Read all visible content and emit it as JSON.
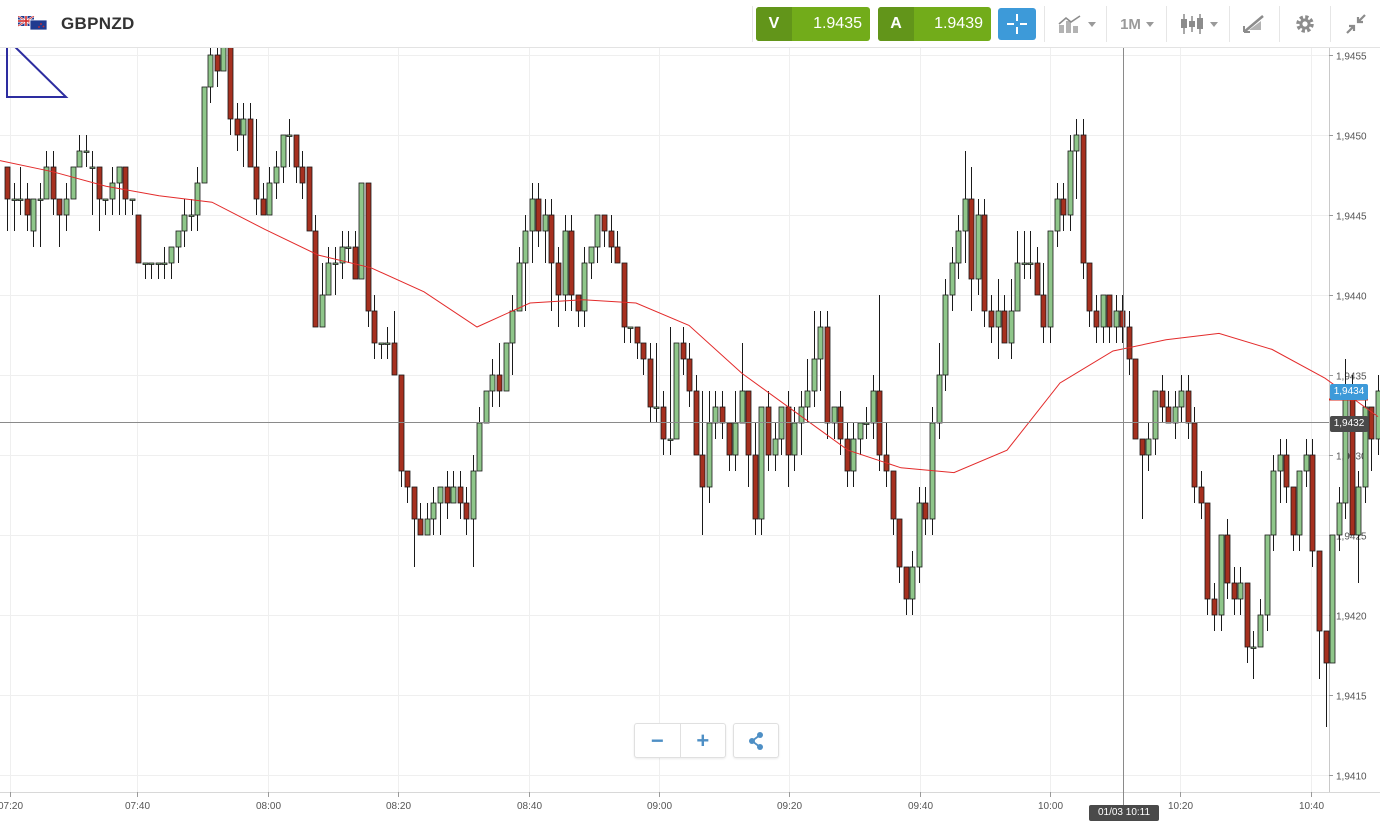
{
  "instrument": {
    "symbol": "GBPNZD",
    "flag_icon": "gb-nz-flag-icon"
  },
  "sell": {
    "label": "V",
    "price": "1.9435"
  },
  "buy": {
    "label": "A",
    "price": "1.9439"
  },
  "toolbar": {
    "crosshair_icon": "crosshair-icon",
    "indicators_icon": "indicators-icon",
    "timeframe": "1M",
    "chart_type_icon": "candlestick-icon",
    "draw_icon": "draw-tools-icon",
    "settings_icon": "gear-icon",
    "fullscreen_icon": "collapse-icon"
  },
  "zoom": {
    "out_label": "−",
    "in_label": "+",
    "share_icon": "share-icon"
  },
  "price_axis": {
    "ticks": [
      "1,9455",
      "1,9450",
      "1,9445",
      "1,9440",
      "1,9435",
      "1,9430",
      "1,9425",
      "1,9420",
      "1,9415",
      "1,9410"
    ]
  },
  "price_tags": {
    "last": "1,9434",
    "cursor": "1,9432"
  },
  "time_tag": "01/03 10:11",
  "colors": {
    "up": "#8fc68a",
    "down": "#a6301f",
    "ma": "#e32b2b",
    "accent": "#3d9ad9",
    "trade": "#72ac1a"
  },
  "chart_data": {
    "type": "candlestick",
    "timeframe": "1M",
    "x_ticks": [
      "07:20",
      "07:40",
      "08:00",
      "08:20",
      "08:40",
      "09:00",
      "09:20",
      "09:40",
      "10:00",
      "10:20",
      "10:40"
    ],
    "ylim": [
      1.9408,
      1.9458
    ],
    "grid": true,
    "ma_line": [
      1.94484,
      1.94477,
      1.94468,
      1.94462,
      1.94458,
      1.94441,
      1.94425,
      1.94417,
      1.94402,
      1.9438,
      1.94395,
      1.94397,
      1.94395,
      1.94381,
      1.94351,
      1.94327,
      1.94303,
      1.94292,
      1.94289,
      1.94303,
      1.94345,
      1.94365,
      1.94372,
      1.94376,
      1.94366,
      1.94348,
      1.94324
    ],
    "candles": [
      [
        1.9448,
        1.9446,
        1.9448,
        1.9444
      ],
      [
        1.9446,
        1.9446,
        1.9447,
        1.9444
      ],
      [
        1.9446,
        1.9446,
        1.9448,
        1.9445
      ],
      [
        1.9446,
        1.9445,
        1.9447,
        1.9444
      ],
      [
        1.9444,
        1.9446,
        1.9446,
        1.9443
      ],
      [
        1.9446,
        1.9446,
        1.9447,
        1.9443
      ],
      [
        1.9446,
        1.9448,
        1.9449,
        1.9446
      ],
      [
        1.9448,
        1.9446,
        1.9449,
        1.9445
      ],
      [
        1.9446,
        1.9445,
        1.9446,
        1.9443
      ],
      [
        1.9445,
        1.9446,
        1.9447,
        1.9444
      ],
      [
        1.9446,
        1.9448,
        1.9448,
        1.9446
      ],
      [
        1.9448,
        1.9449,
        1.945,
        1.9448
      ],
      [
        1.9449,
        1.9449,
        1.945,
        1.9448
      ],
      [
        1.9448,
        1.9448,
        1.9449,
        1.9445
      ],
      [
        1.9448,
        1.9446,
        1.9448,
        1.9444
      ],
      [
        1.9446,
        1.9446,
        1.9446,
        1.9445
      ],
      [
        1.9446,
        1.9447,
        1.9448,
        1.9445
      ],
      [
        1.9447,
        1.9448,
        1.9448,
        1.9445
      ],
      [
        1.9448,
        1.9446,
        1.9448,
        1.9445
      ],
      [
        1.9446,
        1.9446,
        1.9446,
        1.9445
      ],
      [
        1.9445,
        1.9442,
        1.9445,
        1.9442
      ],
      [
        1.9442,
        1.9442,
        1.9442,
        1.9441
      ],
      [
        1.9442,
        1.9442,
        1.9442,
        1.9441
      ],
      [
        1.9442,
        1.9442,
        1.9442,
        1.9441
      ],
      [
        1.9442,
        1.9442,
        1.9443,
        1.9441
      ],
      [
        1.9442,
        1.9443,
        1.9443,
        1.9441
      ],
      [
        1.9443,
        1.9444,
        1.9444,
        1.9442
      ],
      [
        1.9444,
        1.9445,
        1.9446,
        1.9443
      ],
      [
        1.9445,
        1.9445,
        1.9446,
        1.9444
      ],
      [
        1.9445,
        1.9447,
        1.9448,
        1.9444
      ],
      [
        1.9447,
        1.9453,
        1.9453,
        1.9447
      ],
      [
        1.9453,
        1.9455,
        1.9456,
        1.9452
      ],
      [
        1.9455,
        1.9454,
        1.9456,
        1.9453
      ],
      [
        1.9454,
        1.9456,
        1.9457,
        1.9454
      ],
      [
        1.9456,
        1.9451,
        1.9458,
        1.945
      ],
      [
        1.9451,
        1.945,
        1.9452,
        1.9449
      ],
      [
        1.945,
        1.9451,
        1.9452,
        1.9448
      ],
      [
        1.9451,
        1.9448,
        1.9452,
        1.9448
      ],
      [
        1.9448,
        1.9446,
        1.9451,
        1.9445
      ],
      [
        1.9446,
        1.9445,
        1.9447,
        1.9445
      ],
      [
        1.9445,
        1.9447,
        1.9448,
        1.9445
      ],
      [
        1.9447,
        1.9448,
        1.9449,
        1.9446
      ],
      [
        1.9448,
        1.945,
        1.945,
        1.9447
      ],
      [
        1.945,
        1.945,
        1.9451,
        1.9448
      ],
      [
        1.945,
        1.9448,
        1.945,
        1.9447
      ],
      [
        1.9448,
        1.9447,
        1.9449,
        1.9446
      ],
      [
        1.9448,
        1.9444,
        1.9448,
        1.9444
      ],
      [
        1.9444,
        1.9438,
        1.9445,
        1.9438
      ],
      [
        1.9438,
        1.944,
        1.9442,
        1.9438
      ],
      [
        1.944,
        1.9442,
        1.9443,
        1.944
      ],
      [
        1.9442,
        1.9442,
        1.9443,
        1.944
      ],
      [
        1.9442,
        1.9443,
        1.9444,
        1.9441
      ],
      [
        1.9443,
        1.9443,
        1.9444,
        1.9442
      ],
      [
        1.9443,
        1.9441,
        1.9444,
        1.9441
      ],
      [
        1.9441,
        1.9447,
        1.9447,
        1.9441
      ],
      [
        1.9447,
        1.9439,
        1.9447,
        1.9438
      ],
      [
        1.9439,
        1.9437,
        1.944,
        1.9436
      ],
      [
        1.9437,
        1.9437,
        1.9437,
        1.9436
      ],
      [
        1.9437,
        1.9437,
        1.9438,
        1.9436
      ],
      [
        1.9437,
        1.9435,
        1.9439,
        1.9435
      ],
      [
        1.9435,
        1.9429,
        1.9435,
        1.9428
      ],
      [
        1.9429,
        1.9428,
        1.9429,
        1.9427
      ],
      [
        1.9428,
        1.9426,
        1.9428,
        1.9423
      ],
      [
        1.9426,
        1.9425,
        1.9427,
        1.9425
      ],
      [
        1.9425,
        1.9426,
        1.9427,
        1.9425
      ],
      [
        1.9426,
        1.9427,
        1.9428,
        1.9425
      ],
      [
        1.9427,
        1.9428,
        1.9428,
        1.9425
      ],
      [
        1.9428,
        1.9427,
        1.9429,
        1.9426
      ],
      [
        1.9427,
        1.9428,
        1.9429,
        1.9427
      ],
      [
        1.9428,
        1.9427,
        1.9429,
        1.9426
      ],
      [
        1.9427,
        1.9426,
        1.9428,
        1.9425
      ],
      [
        1.9426,
        1.9429,
        1.943,
        1.9423
      ],
      [
        1.9429,
        1.9432,
        1.9433,
        1.9429
      ],
      [
        1.9432,
        1.9434,
        1.9434,
        1.9432
      ],
      [
        1.9434,
        1.9435,
        1.9436,
        1.9433
      ],
      [
        1.9435,
        1.9434,
        1.9437,
        1.9433
      ],
      [
        1.9434,
        1.9437,
        1.9437,
        1.9434
      ],
      [
        1.9437,
        1.9439,
        1.944,
        1.9435
      ],
      [
        1.9439,
        1.9442,
        1.9443,
        1.9439
      ],
      [
        1.9442,
        1.9444,
        1.9445,
        1.9439
      ],
      [
        1.9444,
        1.9446,
        1.9447,
        1.9442
      ],
      [
        1.9446,
        1.9444,
        1.9447,
        1.9443
      ],
      [
        1.9444,
        1.9445,
        1.9446,
        1.9442
      ],
      [
        1.9445,
        1.9442,
        1.9446,
        1.9439
      ],
      [
        1.9442,
        1.944,
        1.9443,
        1.9438
      ],
      [
        1.944,
        1.9444,
        1.9445,
        1.9439
      ],
      [
        1.9444,
        1.944,
        1.9445,
        1.9439
      ],
      [
        1.944,
        1.9439,
        1.944,
        1.9438
      ],
      [
        1.9439,
        1.9442,
        1.9443,
        1.9438
      ],
      [
        1.9442,
        1.9443,
        1.9443,
        1.9441
      ],
      [
        1.9443,
        1.9445,
        1.9445,
        1.9442
      ],
      [
        1.9445,
        1.9444,
        1.9445,
        1.9443
      ],
      [
        1.9444,
        1.9443,
        1.9445,
        1.9442
      ],
      [
        1.9443,
        1.9442,
        1.9444,
        1.9442
      ],
      [
        1.9442,
        1.9438,
        1.9442,
        1.9437
      ],
      [
        1.9438,
        1.9438,
        1.9438,
        1.9437
      ],
      [
        1.9438,
        1.9437,
        1.9438,
        1.9436
      ],
      [
        1.9437,
        1.9436,
        1.9437,
        1.9435
      ],
      [
        1.9436,
        1.9433,
        1.9437,
        1.9432
      ],
      [
        1.9433,
        1.9433,
        1.9437,
        1.9432
      ],
      [
        1.9433,
        1.9431,
        1.9434,
        1.943
      ],
      [
        1.9431,
        1.9431,
        1.9438,
        1.943
      ],
      [
        1.9431,
        1.9437,
        1.9437,
        1.9431
      ],
      [
        1.9437,
        1.9436,
        1.9438,
        1.9435
      ],
      [
        1.9436,
        1.9434,
        1.9437,
        1.9433
      ],
      [
        1.9434,
        1.943,
        1.9435,
        1.943
      ],
      [
        1.943,
        1.9428,
        1.9434,
        1.9425
      ],
      [
        1.9428,
        1.9432,
        1.9434,
        1.9427
      ],
      [
        1.9432,
        1.9433,
        1.9434,
        1.9431
      ],
      [
        1.9433,
        1.9432,
        1.9434,
        1.9431
      ],
      [
        1.9432,
        1.943,
        1.9432,
        1.9429
      ],
      [
        1.943,
        1.9432,
        1.9434,
        1.9429
      ],
      [
        1.9432,
        1.9434,
        1.9437,
        1.9432
      ],
      [
        1.9434,
        1.943,
        1.9434,
        1.9428
      ],
      [
        1.943,
        1.9426,
        1.9432,
        1.9425
      ],
      [
        1.9426,
        1.9433,
        1.9433,
        1.9425
      ],
      [
        1.9433,
        1.943,
        1.9434,
        1.9429
      ],
      [
        1.943,
        1.9431,
        1.9432,
        1.9429
      ],
      [
        1.9431,
        1.9433,
        1.9433,
        1.943
      ],
      [
        1.9433,
        1.943,
        1.9434,
        1.9428
      ],
      [
        1.943,
        1.9432,
        1.9433,
        1.9429
      ],
      [
        1.9432,
        1.9433,
        1.9434,
        1.943
      ],
      [
        1.9433,
        1.9434,
        1.9436,
        1.9432
      ],
      [
        1.9434,
        1.9436,
        1.9439,
        1.9433
      ],
      [
        1.9436,
        1.9438,
        1.9439,
        1.9434
      ],
      [
        1.9438,
        1.9432,
        1.9439,
        1.9431
      ],
      [
        1.9432,
        1.9433,
        1.9433,
        1.9431
      ],
      [
        1.9433,
        1.9431,
        1.9434,
        1.943
      ],
      [
        1.9431,
        1.9429,
        1.9432,
        1.9428
      ],
      [
        1.9429,
        1.9431,
        1.9432,
        1.9428
      ],
      [
        1.9431,
        1.9432,
        1.9432,
        1.943
      ],
      [
        1.9432,
        1.9432,
        1.9433,
        1.9431
      ],
      [
        1.9432,
        1.9434,
        1.9435,
        1.9431
      ],
      [
        1.9434,
        1.943,
        1.944,
        1.9429
      ],
      [
        1.943,
        1.9429,
        1.9432,
        1.9428
      ],
      [
        1.9429,
        1.9426,
        1.9429,
        1.9425
      ],
      [
        1.9426,
        1.9423,
        1.9426,
        1.9422
      ],
      [
        1.9423,
        1.9421,
        1.9423,
        1.942
      ],
      [
        1.9421,
        1.9423,
        1.9424,
        1.942
      ],
      [
        1.9423,
        1.9427,
        1.9428,
        1.9422
      ],
      [
        1.9427,
        1.9426,
        1.9428,
        1.9425
      ],
      [
        1.9426,
        1.9432,
        1.9433,
        1.9425
      ],
      [
        1.9432,
        1.9435,
        1.9437,
        1.9431
      ],
      [
        1.9435,
        1.944,
        1.9441,
        1.9434
      ],
      [
        1.944,
        1.9442,
        1.9443,
        1.9439
      ],
      [
        1.9442,
        1.9444,
        1.9445,
        1.9441
      ],
      [
        1.9444,
        1.9446,
        1.9449,
        1.9442
      ],
      [
        1.9446,
        1.9441,
        1.9448,
        1.9439
      ],
      [
        1.9441,
        1.9445,
        1.9446,
        1.944
      ],
      [
        1.9445,
        1.9439,
        1.9446,
        1.9438
      ],
      [
        1.9439,
        1.9438,
        1.944,
        1.9437
      ],
      [
        1.9438,
        1.9439,
        1.9441,
        1.9436
      ],
      [
        1.9439,
        1.9437,
        1.944,
        1.9437
      ],
      [
        1.9437,
        1.9439,
        1.9441,
        1.9436
      ],
      [
        1.9439,
        1.9442,
        1.9444,
        1.9439
      ],
      [
        1.9442,
        1.9442,
        1.9444,
        1.9441
      ],
      [
        1.9442,
        1.9442,
        1.9444,
        1.9441
      ],
      [
        1.9442,
        1.944,
        1.9443,
        1.944
      ],
      [
        1.944,
        1.9438,
        1.9442,
        1.9437
      ],
      [
        1.9438,
        1.9444,
        1.9444,
        1.9437
      ],
      [
        1.9444,
        1.9446,
        1.9447,
        1.9443
      ],
      [
        1.9446,
        1.9445,
        1.9447,
        1.9444
      ],
      [
        1.9445,
        1.9449,
        1.945,
        1.9444
      ],
      [
        1.9449,
        1.945,
        1.9451,
        1.9446
      ],
      [
        1.945,
        1.9442,
        1.9451,
        1.9441
      ],
      [
        1.9442,
        1.9439,
        1.9442,
        1.9438
      ],
      [
        1.9439,
        1.9438,
        1.944,
        1.9437
      ],
      [
        1.9438,
        1.944,
        1.944,
        1.9437
      ],
      [
        1.944,
        1.9438,
        1.944,
        1.9437
      ],
      [
        1.9438,
        1.9439,
        1.944,
        1.9437
      ],
      [
        1.9439,
        1.9438,
        1.944,
        1.9437
      ],
      [
        1.9438,
        1.9436,
        1.9439,
        1.9435
      ],
      [
        1.9436,
        1.9431,
        1.9436,
        1.9431
      ],
      [
        1.9431,
        1.943,
        1.9431,
        1.9426
      ],
      [
        1.943,
        1.9431,
        1.9432,
        1.9429
      ],
      [
        1.9431,
        1.9434,
        1.9434,
        1.943
      ],
      [
        1.9434,
        1.9433,
        1.9435,
        1.9432
      ],
      [
        1.9433,
        1.9432,
        1.9434,
        1.9432
      ],
      [
        1.9432,
        1.9433,
        1.9434,
        1.9431
      ],
      [
        1.9433,
        1.9434,
        1.9435,
        1.9432
      ],
      [
        1.9434,
        1.9432,
        1.9435,
        1.9431
      ],
      [
        1.9432,
        1.9428,
        1.9433,
        1.9427
      ],
      [
        1.9428,
        1.9427,
        1.9429,
        1.9426
      ],
      [
        1.9427,
        1.9421,
        1.9427,
        1.942
      ],
      [
        1.9421,
        1.942,
        1.9422,
        1.9419
      ],
      [
        1.942,
        1.9425,
        1.9425,
        1.9419
      ],
      [
        1.9425,
        1.9422,
        1.9426,
        1.9421
      ],
      [
        1.9422,
        1.9421,
        1.9423,
        1.942
      ],
      [
        1.9421,
        1.9422,
        1.9423,
        1.942
      ],
      [
        1.9422,
        1.9418,
        1.9422,
        1.9417
      ],
      [
        1.9418,
        1.9418,
        1.9419,
        1.9416
      ],
      [
        1.9418,
        1.942,
        1.9421,
        1.9418
      ],
      [
        1.942,
        1.9425,
        1.9425,
        1.9419
      ],
      [
        1.9425,
        1.9429,
        1.943,
        1.9424
      ],
      [
        1.9429,
        1.943,
        1.9431,
        1.9427
      ],
      [
        1.943,
        1.9428,
        1.9431,
        1.9427
      ],
      [
        1.9428,
        1.9425,
        1.9428,
        1.9424
      ],
      [
        1.9425,
        1.9429,
        1.9429,
        1.9424
      ],
      [
        1.9429,
        1.943,
        1.9431,
        1.9428
      ],
      [
        1.943,
        1.9424,
        1.9431,
        1.9423
      ],
      [
        1.9424,
        1.9419,
        1.9424,
        1.9416
      ],
      [
        1.9419,
        1.9417,
        1.9419,
        1.9413
      ],
      [
        1.9417,
        1.9425,
        1.9425,
        1.9417
      ],
      [
        1.9425,
        1.9427,
        1.9428,
        1.9424
      ],
      [
        1.9427,
        1.9434,
        1.9436,
        1.9426
      ],
      [
        1.9434,
        1.9425,
        1.9435,
        1.9425
      ],
      [
        1.9425,
        1.9428,
        1.9429,
        1.9422
      ],
      [
        1.9428,
        1.9433,
        1.9434,
        1.9427
      ],
      [
        1.9433,
        1.9431,
        1.9433,
        1.9429
      ],
      [
        1.9431,
        1.9434,
        1.9435,
        1.943
      ]
    ]
  }
}
